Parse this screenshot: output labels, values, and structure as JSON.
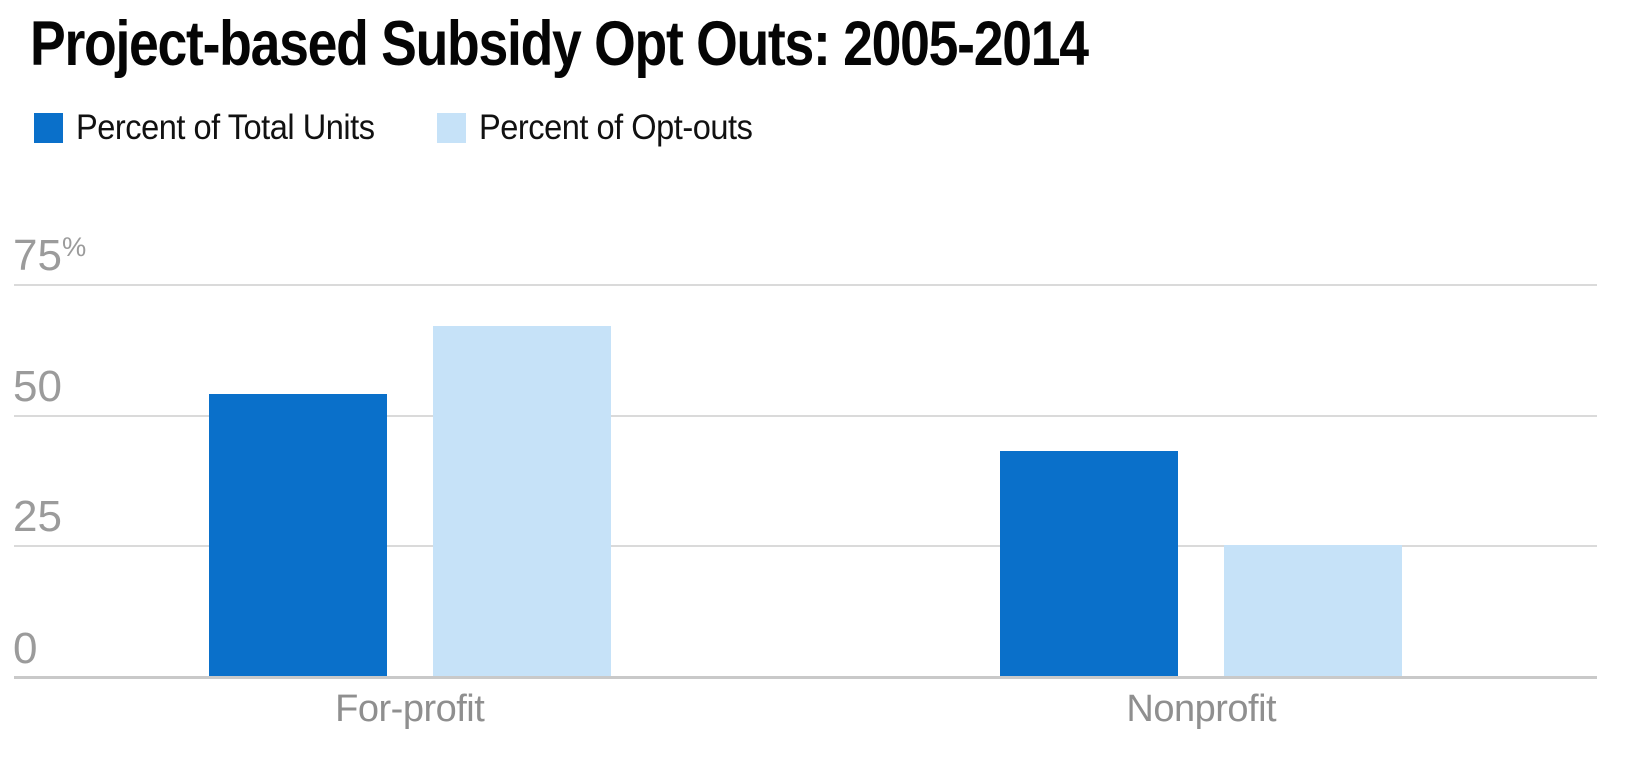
{
  "chart": {
    "title": "Project-based Subsidy Opt Outs: 2005-2014"
  },
  "chart_data": {
    "type": "bar",
    "title": "Project-based Subsidy Opt Outs: 2005-2014",
    "categories": [
      "For-profit",
      "Nonprofit"
    ],
    "series": [
      {
        "name": "Percent of Total Units",
        "color": "#0a70ca",
        "values": [
          54,
          43
        ]
      },
      {
        "name": "Percent of Opt-outs",
        "color": "#c6e2f8",
        "values": [
          67,
          25
        ]
      }
    ],
    "yticks": [
      {
        "value": 75,
        "label": "75",
        "suffix": "%"
      },
      {
        "value": 50,
        "label": "50",
        "suffix": ""
      },
      {
        "value": 25,
        "label": "25",
        "suffix": ""
      },
      {
        "value": 0,
        "label": "0",
        "suffix": ""
      }
    ],
    "ylim": [
      0,
      75
    ],
    "unit": "percent",
    "grid": true,
    "legend_position": "top-left",
    "colors": {
      "title_text": "#050505",
      "tick_text": "#9b9b9b",
      "category_text": "#8f8f8f",
      "gridline": "#dadada",
      "axis_line": "#c9c9c9",
      "background": "#ffffff"
    }
  }
}
